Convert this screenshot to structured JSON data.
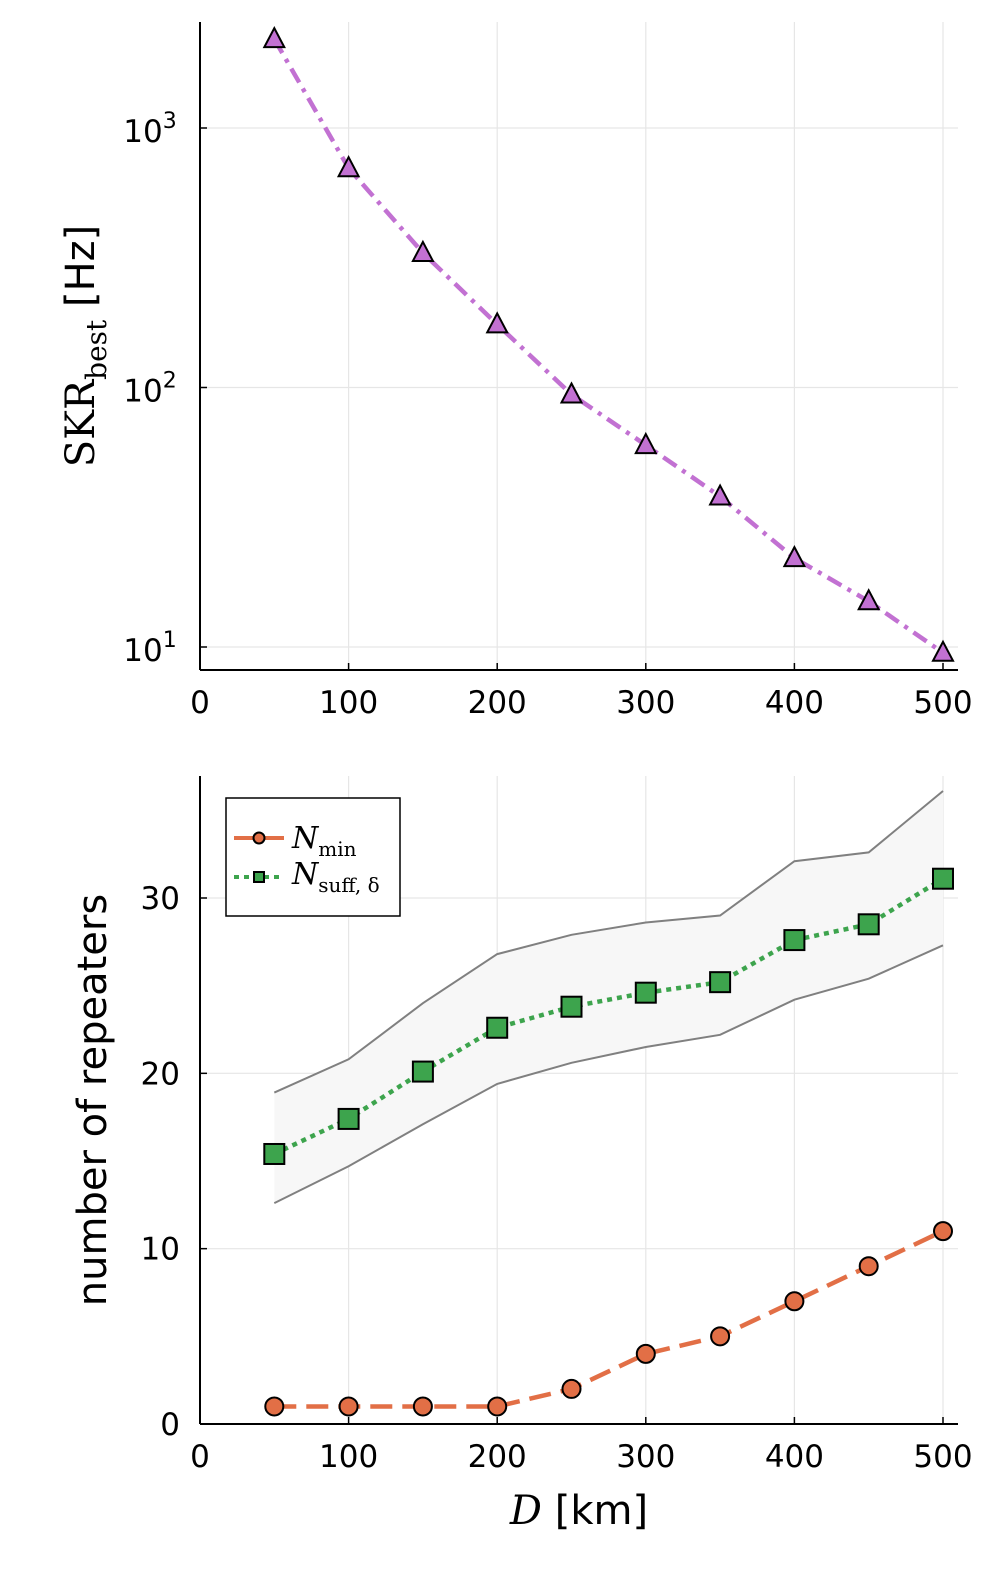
{
  "chart_data": [
    {
      "type": "line",
      "yscale": "log",
      "xlabel": "",
      "ylabel": "SKR",
      "ylabel_sub": "best",
      "ylabel_unit": "[Hz]",
      "x": [
        50,
        100,
        150,
        200,
        250,
        300,
        350,
        400,
        450,
        500
      ],
      "values": [
        2200,
        700,
        330,
        175,
        94,
        60,
        38,
        22,
        15,
        9.5
      ],
      "xlim": [
        0,
        510
      ],
      "ylim": [
        8.2,
        2600
      ],
      "xticks": [
        "0",
        "100",
        "200",
        "300",
        "400",
        "500"
      ],
      "yticks": [
        {
          "base": "10",
          "exp": "1",
          "value": 10
        },
        {
          "base": "10",
          "exp": "2",
          "value": 100
        },
        {
          "base": "10",
          "exp": "3",
          "value": 1000
        }
      ],
      "color": "#c271d2",
      "marker": "triangle",
      "linestyle": "dashdot"
    },
    {
      "type": "line",
      "xlabel_var": "D",
      "xlabel_unit": "[km]",
      "ylabel": "number of repeaters",
      "x": [
        50,
        100,
        150,
        200,
        250,
        300,
        350,
        400,
        450,
        500
      ],
      "xlim": [
        0,
        510
      ],
      "ylim": [
        0,
        37
      ],
      "xticks": [
        "0",
        "100",
        "200",
        "300",
        "400",
        "500"
      ],
      "yticks": [
        "0",
        "10",
        "20",
        "30"
      ],
      "band": {
        "upper": [
          18.9,
          20.8,
          24.0,
          26.8,
          27.9,
          28.6,
          29.0,
          32.1,
          32.6,
          36.1
        ],
        "lower": [
          12.6,
          14.7,
          17.1,
          19.4,
          20.6,
          21.5,
          22.2,
          24.2,
          25.4,
          27.3
        ],
        "fill": "#f7f7f7",
        "stroke": "#808080"
      },
      "series": [
        {
          "name": "N",
          "sub": "min",
          "values": [
            1,
            1,
            1,
            1,
            2,
            4,
            5,
            7,
            9,
            11
          ],
          "color": "#e26f46",
          "marker": "circle",
          "linestyle": "dashed"
        },
        {
          "name": "N",
          "sub": "suff, δ",
          "values": [
            15.4,
            17.4,
            20.1,
            22.6,
            23.8,
            24.6,
            25.2,
            27.6,
            28.5,
            31.1
          ],
          "color": "#3da44d",
          "marker": "square",
          "linestyle": "dotted"
        }
      ],
      "legend_position": "top-left"
    }
  ]
}
